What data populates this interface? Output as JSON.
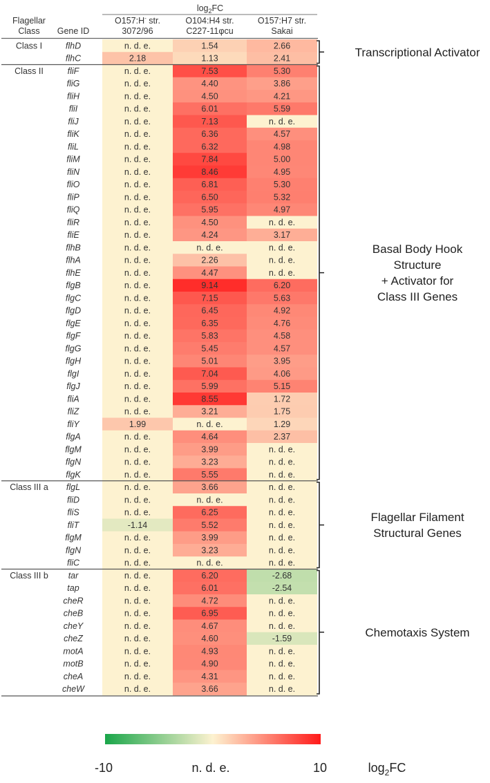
{
  "chart_data": {
    "type": "heatmap",
    "title": "",
    "header": {
      "top_label": "log",
      "top_label_sub": "2",
      "top_label_tail": "FC",
      "class_col_line1": "Flagellar",
      "class_col_line2": "Class",
      "gene_col": "Gene ID"
    },
    "columns": [
      {
        "line1": "O157:H",
        "sup": "-",
        "line1_tail": " str.",
        "line2": "3072/96"
      },
      {
        "line1": "O104:H4 str.",
        "sup": "",
        "line1_tail": "",
        "line2": "C227-11φcu"
      },
      {
        "line1": "O157:H7 str.",
        "sup": "",
        "line1_tail": "",
        "line2": "Sakai"
      }
    ],
    "rows": [
      {
        "class": "Class I",
        "gene": "flhD",
        "values": [
          "n. d. e.",
          "1.54",
          "2.66"
        ]
      },
      {
        "class": "",
        "gene": "flhC",
        "values": [
          "2.18",
          "1.13",
          "2.41"
        ]
      },
      {
        "class": "Class II",
        "gene": "fliF",
        "values": [
          "n. d. e.",
          "7.53",
          "5.30"
        ]
      },
      {
        "class": "",
        "gene": "fliG",
        "values": [
          "n. d. e.",
          "4.40",
          "3.86"
        ]
      },
      {
        "class": "",
        "gene": "fliH",
        "values": [
          "n. d. e.",
          "4.50",
          "4.21"
        ]
      },
      {
        "class": "",
        "gene": "fliI",
        "values": [
          "n. d. e.",
          "6.01",
          "5.59"
        ]
      },
      {
        "class": "",
        "gene": "fliJ",
        "values": [
          "n. d. e.",
          "7.13",
          "n. d. e."
        ]
      },
      {
        "class": "",
        "gene": "fliK",
        "values": [
          "n. d. e.",
          "6.36",
          "4.57"
        ]
      },
      {
        "class": "",
        "gene": "fliL",
        "values": [
          "n. d. e.",
          "6.32",
          "4.98"
        ]
      },
      {
        "class": "",
        "gene": "fliM",
        "values": [
          "n. d. e.",
          "7.84",
          "5.00"
        ]
      },
      {
        "class": "",
        "gene": "fliN",
        "values": [
          "n. d. e.",
          "8.46",
          "4.95"
        ]
      },
      {
        "class": "",
        "gene": "fliO",
        "values": [
          "n. d. e.",
          "6.81",
          "5.30"
        ]
      },
      {
        "class": "",
        "gene": "fliP",
        "values": [
          "n. d. e.",
          "6.50",
          "5.32"
        ]
      },
      {
        "class": "",
        "gene": "fliQ",
        "values": [
          "n. d. e.",
          "5.95",
          "4.97"
        ]
      },
      {
        "class": "",
        "gene": "fliR",
        "values": [
          "n. d. e.",
          "4.50",
          "n. d. e."
        ]
      },
      {
        "class": "",
        "gene": "fliE",
        "values": [
          "n. d. e.",
          "4.24",
          "3.17"
        ]
      },
      {
        "class": "",
        "gene": "flhB",
        "values": [
          "n. d. e.",
          "n. d. e.",
          "n. d. e."
        ]
      },
      {
        "class": "",
        "gene": "flhA",
        "values": [
          "n. d. e.",
          "2.26",
          "n. d. e."
        ]
      },
      {
        "class": "",
        "gene": "flhE",
        "values": [
          "n. d. e.",
          "4.47",
          "n. d. e."
        ]
      },
      {
        "class": "",
        "gene": "flgB",
        "values": [
          "n. d. e.",
          "9.14",
          "6.20"
        ]
      },
      {
        "class": "",
        "gene": "flgC",
        "values": [
          "n. d. e.",
          "7.15",
          "5.63"
        ]
      },
      {
        "class": "",
        "gene": "flgD",
        "values": [
          "n. d. e.",
          "6.45",
          "4.92"
        ]
      },
      {
        "class": "",
        "gene": "flgE",
        "values": [
          "n. d. e.",
          "6.35",
          "4.76"
        ]
      },
      {
        "class": "",
        "gene": "flgF",
        "values": [
          "n. d. e.",
          "5.83",
          "4.58"
        ]
      },
      {
        "class": "",
        "gene": "flgG",
        "values": [
          "n. d. e.",
          "5.45",
          "4.57"
        ]
      },
      {
        "class": "",
        "gene": "flgH",
        "values": [
          "n. d. e.",
          "5.01",
          "3.95"
        ]
      },
      {
        "class": "",
        "gene": "flgI",
        "values": [
          "n. d. e.",
          "7.04",
          "4.06"
        ]
      },
      {
        "class": "",
        "gene": "flgJ",
        "values": [
          "n. d. e.",
          "5.99",
          "5.15"
        ]
      },
      {
        "class": "",
        "gene": "fliA",
        "values": [
          "n. d. e.",
          "8.55",
          "1.72"
        ]
      },
      {
        "class": "",
        "gene": "fliZ",
        "values": [
          "n. d. e.",
          "3.21",
          "1.75"
        ]
      },
      {
        "class": "",
        "gene": "fliY",
        "values": [
          "1.99",
          "n. d. e.",
          "1.29"
        ]
      },
      {
        "class": "",
        "gene": "flgA",
        "values": [
          "n. d. e.",
          "4.64",
          "2.37"
        ]
      },
      {
        "class": "",
        "gene": "flgM",
        "values": [
          "n. d. e.",
          "3.99",
          "n. d. e."
        ]
      },
      {
        "class": "",
        "gene": "flgN",
        "values": [
          "n. d. e.",
          "3.23",
          "n. d. e."
        ]
      },
      {
        "class": "",
        "gene": "flgK",
        "values": [
          "n. d. e.",
          "5.55",
          "n. d. e."
        ]
      },
      {
        "class": "Class III a",
        "gene": "flgL",
        "values": [
          "n. d. e.",
          "3.66",
          "n. d. e."
        ]
      },
      {
        "class": "",
        "gene": "fliD",
        "values": [
          "n. d. e.",
          "n. d. e.",
          "n. d. e."
        ]
      },
      {
        "class": "",
        "gene": "fliS",
        "values": [
          "n. d. e.",
          "6.25",
          "n. d. e."
        ]
      },
      {
        "class": "",
        "gene": "fliT",
        "values": [
          "-1.14",
          "5.52",
          "n. d. e."
        ]
      },
      {
        "class": "",
        "gene": "flgM",
        "values": [
          "n. d. e.",
          "3.99",
          "n. d. e."
        ]
      },
      {
        "class": "",
        "gene": "flgN",
        "values": [
          "n. d. e.",
          "3.23",
          "n. d. e."
        ]
      },
      {
        "class": "",
        "gene": "fliC",
        "values": [
          "n. d. e.",
          "n. d. e.",
          "n. d. e."
        ]
      },
      {
        "class": "Class III b",
        "gene": "tar",
        "values": [
          "n. d. e.",
          "6.20",
          "-2.68"
        ]
      },
      {
        "class": "",
        "gene": "tap",
        "values": [
          "n. d. e.",
          "6.01",
          "-2.54"
        ]
      },
      {
        "class": "",
        "gene": "cheR",
        "values": [
          "n. d. e.",
          "4.72",
          "n. d. e."
        ]
      },
      {
        "class": "",
        "gene": "cheB",
        "values": [
          "n. d. e.",
          "6.95",
          "n. d. e."
        ]
      },
      {
        "class": "",
        "gene": "cheY",
        "values": [
          "n. d. e.",
          "4.67",
          "n. d. e."
        ]
      },
      {
        "class": "",
        "gene": "cheZ",
        "values": [
          "n. d. e.",
          "4.60",
          "-1.59"
        ]
      },
      {
        "class": "",
        "gene": "motA",
        "values": [
          "n. d. e.",
          "4.93",
          "n. d. e."
        ]
      },
      {
        "class": "",
        "gene": "motB",
        "values": [
          "n. d. e.",
          "4.90",
          "n. d. e."
        ]
      },
      {
        "class": "",
        "gene": "cheA",
        "values": [
          "n. d. e.",
          "4.31",
          "n. d. e."
        ]
      },
      {
        "class": "",
        "gene": "cheW",
        "values": [
          "n. d. e.",
          "3.66",
          "n. d. e."
        ]
      }
    ],
    "groups": [
      {
        "label_lines": [
          "Transcriptional Activator"
        ],
        "row_start": 0,
        "row_end": 1
      },
      {
        "label_lines": [
          "Basal Body Hook",
          "Structure",
          "+ Activator for",
          "Class III Genes"
        ],
        "row_start": 2,
        "row_end": 34
      },
      {
        "label_lines": [
          "Flagellar Filament",
          "Structural Genes"
        ],
        "row_start": 35,
        "row_end": 41
      },
      {
        "label_lines": [
          "Chemotaxis System"
        ],
        "row_start": 42,
        "row_end": 51
      }
    ],
    "class_separators_after_rows": [
      1,
      34,
      41
    ],
    "colorscale": {
      "min": -10,
      "max": 10,
      "min_label": "-10",
      "mid_label": "n. d. e.",
      "max_label": "10",
      "low_color": "#1aa64a",
      "mid_color": "#fdf2d0",
      "high_color": "#ff1a1a",
      "unit_label": "log",
      "unit_sub": "2",
      "unit_tail": "FC"
    }
  }
}
